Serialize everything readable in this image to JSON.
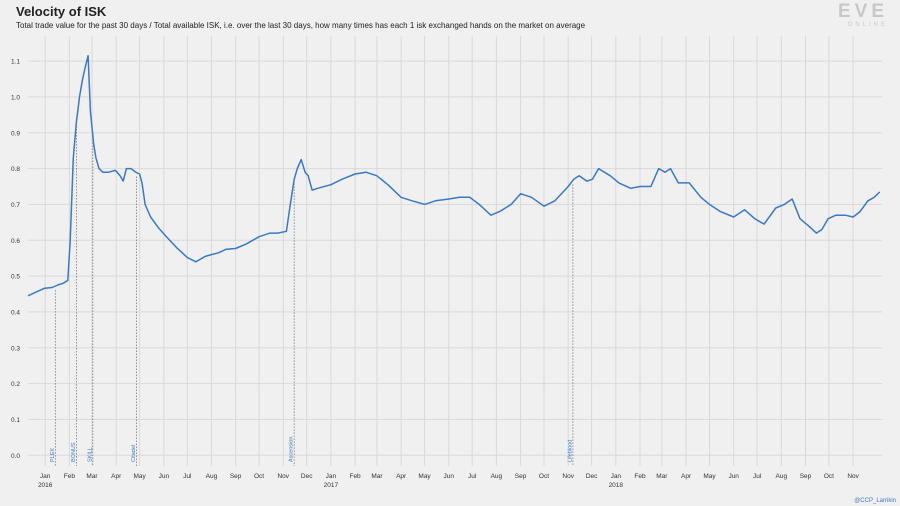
{
  "header": {
    "title": "Velocity of ISK",
    "subtitle": "Total trade value for the past 30 days / Total available ISK, i.e. over the last 30 days, how many times has each 1 isk exchanged hands on the market on average"
  },
  "logo": {
    "big": "EVE",
    "small": "ONLINE"
  },
  "credit": "@CCP_Larrikin",
  "colors": {
    "line": "#3a79c4",
    "annotation": "#3a79c4",
    "grid": "#d9d9d9",
    "background": "#f0f0f0"
  },
  "chart_data": {
    "type": "line",
    "title": "Velocity of ISK",
    "xlabel": "",
    "ylabel": "",
    "x_range": [
      "2015-12-10",
      "2018-12-08"
    ],
    "ylim": [
      -0.03,
      1.17
    ],
    "y_ticks": [
      0.0,
      0.1,
      0.2,
      0.3,
      0.4,
      0.5,
      0.6,
      0.7,
      0.8,
      0.9,
      1.0,
      1.1
    ],
    "y_tick_labels": [
      "0.0",
      "0.1",
      "0.2",
      "0.3",
      "0.4",
      "0.5",
      "0.6",
      "0.7",
      "0.8",
      "0.9",
      "1.0",
      "1.1"
    ],
    "x_ticks": [
      {
        "date": "2016-01-01",
        "label": "Jan",
        "year": "2016"
      },
      {
        "date": "2016-02-01",
        "label": "Feb"
      },
      {
        "date": "2016-03-01",
        "label": "Mar"
      },
      {
        "date": "2016-04-01",
        "label": "Apr"
      },
      {
        "date": "2016-05-01",
        "label": "May"
      },
      {
        "date": "2016-06-01",
        "label": "Jun"
      },
      {
        "date": "2016-07-01",
        "label": "Jul"
      },
      {
        "date": "2016-08-01",
        "label": "Aug"
      },
      {
        "date": "2016-09-01",
        "label": "Sep"
      },
      {
        "date": "2016-10-01",
        "label": "Oct"
      },
      {
        "date": "2016-11-01",
        "label": "Nov"
      },
      {
        "date": "2016-12-01",
        "label": "Dec"
      },
      {
        "date": "2017-01-01",
        "label": "Jan",
        "year": "2017"
      },
      {
        "date": "2017-02-01",
        "label": "Feb"
      },
      {
        "date": "2017-03-01",
        "label": "Mar"
      },
      {
        "date": "2017-04-01",
        "label": "Apr"
      },
      {
        "date": "2017-05-01",
        "label": "May"
      },
      {
        "date": "2017-06-01",
        "label": "Jun"
      },
      {
        "date": "2017-07-01",
        "label": "Jul"
      },
      {
        "date": "2017-08-01",
        "label": "Aug"
      },
      {
        "date": "2017-09-01",
        "label": "Sep"
      },
      {
        "date": "2017-10-01",
        "label": "Oct"
      },
      {
        "date": "2017-11-01",
        "label": "Nov"
      },
      {
        "date": "2017-12-01",
        "label": "Dec"
      },
      {
        "date": "2018-01-01",
        "label": "Jan",
        "year": "2018"
      },
      {
        "date": "2018-02-01",
        "label": "Feb"
      },
      {
        "date": "2018-03-01",
        "label": "Mar"
      },
      {
        "date": "2018-04-01",
        "label": "Apr"
      },
      {
        "date": "2018-05-01",
        "label": "May"
      },
      {
        "date": "2018-06-01",
        "label": "Jun"
      },
      {
        "date": "2018-07-01",
        "label": "Jul"
      },
      {
        "date": "2018-08-01",
        "label": "Aug"
      },
      {
        "date": "2018-09-01",
        "label": "Sep"
      },
      {
        "date": "2018-10-01",
        "label": "Oct"
      },
      {
        "date": "2018-11-01",
        "label": "Nov"
      }
    ],
    "annotations": [
      {
        "date": "2016-01-14",
        "label": "PLEX"
      },
      {
        "date": "2016-02-10",
        "label": "BONUS"
      },
      {
        "date": "2016-03-02",
        "label": "SKILL"
      },
      {
        "date": "2016-04-27",
        "label": "Citadel"
      },
      {
        "date": "2016-11-15",
        "label": "Ascension"
      },
      {
        "date": "2017-11-07",
        "label": "Lifeblood"
      }
    ],
    "grid": true,
    "series": [
      {
        "x": [
          "2015-12-10",
          "2015-12-20",
          "2015-12-31",
          "2016-01-10",
          "2016-01-17",
          "2016-01-24",
          "2016-01-30",
          "2016-02-02",
          "2016-02-06",
          "2016-02-10",
          "2016-02-14",
          "2016-02-18",
          "2016-02-21",
          "2016-02-25",
          "2016-02-28",
          "2016-03-03",
          "2016-03-06",
          "2016-03-10",
          "2016-03-15",
          "2016-03-22",
          "2016-03-31",
          "2016-04-06",
          "2016-04-10",
          "2016-04-14",
          "2016-04-20",
          "2016-04-26",
          "2016-05-01",
          "2016-05-04",
          "2016-05-08",
          "2016-05-15",
          "2016-05-25",
          "2016-06-05",
          "2016-06-18",
          "2016-07-01",
          "2016-07-12",
          "2016-07-24",
          "2016-08-01",
          "2016-08-10",
          "2016-08-20",
          "2016-09-01",
          "2016-09-15",
          "2016-10-01",
          "2016-10-15",
          "2016-10-25",
          "2016-11-05",
          "2016-11-10",
          "2016-11-15",
          "2016-11-19",
          "2016-11-24",
          "2016-11-29",
          "2016-12-03",
          "2016-12-08",
          "2016-12-15",
          "2017-01-01",
          "2017-01-15",
          "2017-02-01",
          "2017-02-15",
          "2017-03-01",
          "2017-03-15",
          "2017-04-01",
          "2017-04-15",
          "2017-05-01",
          "2017-05-15",
          "2017-06-01",
          "2017-06-15",
          "2017-06-28",
          "2017-07-10",
          "2017-07-25",
          "2017-08-05",
          "2017-08-20",
          "2017-09-01",
          "2017-09-15",
          "2017-10-01",
          "2017-10-15",
          "2017-11-01",
          "2017-11-08",
          "2017-11-15",
          "2017-11-25",
          "2017-12-02",
          "2017-12-10",
          "2017-12-25",
          "2018-01-05",
          "2018-01-20",
          "2018-02-01",
          "2018-02-15",
          "2018-02-25",
          "2018-03-05",
          "2018-03-12",
          "2018-03-22",
          "2018-04-05",
          "2018-04-20",
          "2018-05-01",
          "2018-05-15",
          "2018-06-01",
          "2018-06-15",
          "2018-06-28",
          "2018-07-10",
          "2018-07-25",
          "2018-08-05",
          "2018-08-15",
          "2018-08-25",
          "2018-09-05",
          "2018-09-15",
          "2018-09-22",
          "2018-09-30",
          "2018-10-10",
          "2018-10-22",
          "2018-11-01",
          "2018-11-10",
          "2018-11-20",
          "2018-11-28",
          "2018-12-05"
        ],
        "y": [
          0.445,
          0.455,
          0.466,
          0.468,
          0.475,
          0.48,
          0.488,
          0.6,
          0.83,
          0.93,
          1.0,
          1.05,
          1.08,
          1.115,
          0.96,
          0.87,
          0.83,
          0.8,
          0.79,
          0.79,
          0.795,
          0.78,
          0.765,
          0.8,
          0.8,
          0.79,
          0.785,
          0.76,
          0.7,
          0.665,
          0.635,
          0.608,
          0.578,
          0.552,
          0.54,
          0.555,
          0.56,
          0.565,
          0.575,
          0.577,
          0.59,
          0.61,
          0.62,
          0.62,
          0.625,
          0.7,
          0.77,
          0.8,
          0.825,
          0.79,
          0.78,
          0.74,
          0.745,
          0.755,
          0.77,
          0.785,
          0.79,
          0.78,
          0.755,
          0.72,
          0.71,
          0.7,
          0.71,
          0.715,
          0.72,
          0.72,
          0.7,
          0.67,
          0.68,
          0.7,
          0.73,
          0.72,
          0.695,
          0.71,
          0.75,
          0.77,
          0.78,
          0.765,
          0.77,
          0.8,
          0.78,
          0.76,
          0.745,
          0.75,
          0.75,
          0.8,
          0.79,
          0.8,
          0.76,
          0.76,
          0.72,
          0.7,
          0.68,
          0.665,
          0.685,
          0.66,
          0.645,
          0.69,
          0.7,
          0.715,
          0.66,
          0.64,
          0.62,
          0.63,
          0.66,
          0.67,
          0.67,
          0.665,
          0.68,
          0.71,
          0.72,
          0.735
        ]
      }
    ]
  }
}
